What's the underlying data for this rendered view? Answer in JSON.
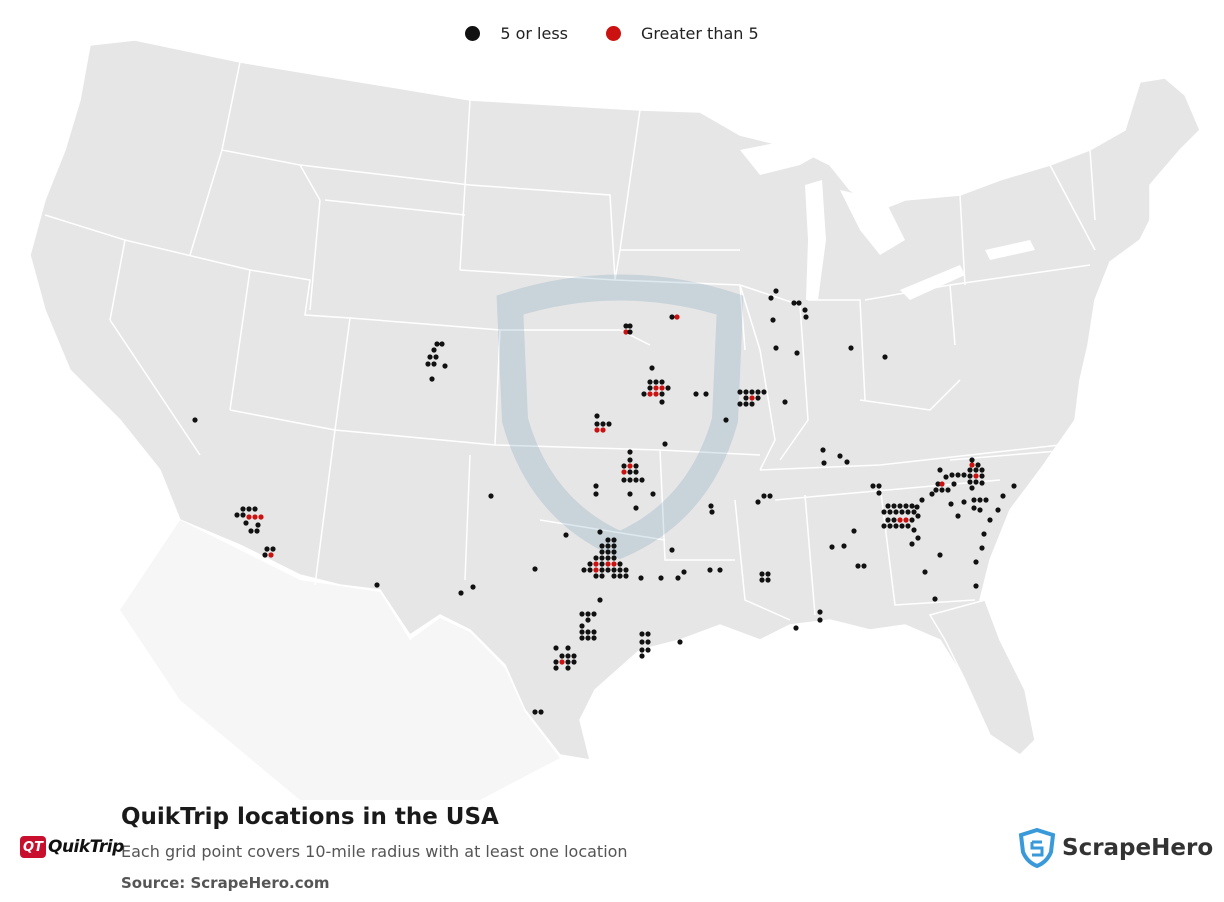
{
  "legend": {
    "items": [
      {
        "label": "5 or less",
        "color": "#111111"
      },
      {
        "label": "Greater than 5",
        "color": "#cc1111"
      }
    ]
  },
  "title": "QuikTrip locations in the USA",
  "subtitle": "Each grid point covers 10-mile radius with at least one location",
  "source": "Source: ScrapeHero.com",
  "brand_logo": {
    "badge": "QT",
    "text": "QuikTrip"
  },
  "publisher_logo": {
    "text": "ScrapeHero",
    "icon": "shield-icon"
  },
  "colors": {
    "land": "#e6e6e6",
    "border": "#ffffff",
    "low": "#111111",
    "high": "#cc1111"
  }
}
